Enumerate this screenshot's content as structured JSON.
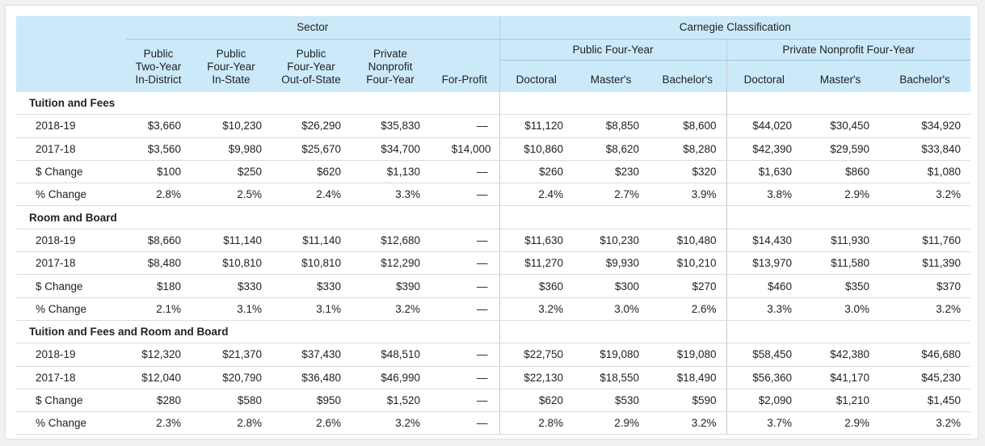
{
  "header": {
    "sector_label": "Sector",
    "carnegie_label": "Carnegie Classification",
    "public_four_year_label": "Public Four-Year",
    "private_nonprofit_label": "Private Nonprofit Four-Year",
    "sector_columns": [
      [
        "Public",
        "Two-Year",
        "In-District"
      ],
      [
        "Public",
        "Four-Year",
        "In-State"
      ],
      [
        "Public",
        "Four-Year",
        "Out-of-State"
      ],
      [
        "Private",
        "Nonprofit",
        "Four-Year"
      ],
      [
        "For-Profit"
      ]
    ],
    "carnegie_columns": [
      "Doctoral",
      "Master's",
      "Bachelor's",
      "Doctoral",
      "Master's",
      "Bachelor's"
    ]
  },
  "sections": [
    {
      "title": "Tuition and Fees",
      "rows": [
        {
          "label": "2018-19",
          "values": [
            "$3,660",
            "$10,230",
            "$26,290",
            "$35,830",
            "—",
            "$11,120",
            "$8,850",
            "$8,600",
            "$44,020",
            "$30,450",
            "$34,920"
          ]
        },
        {
          "label": "2017-18",
          "values": [
            "$3,560",
            "$9,980",
            "$25,670",
            "$34,700",
            "$14,000",
            "$10,860",
            "$8,620",
            "$8,280",
            "$42,390",
            "$29,590",
            "$33,840"
          ]
        },
        {
          "label": "$ Change",
          "values": [
            "$100",
            "$250",
            "$620",
            "$1,130",
            "—",
            "$260",
            "$230",
            "$320",
            "$1,630",
            "$860",
            "$1,080"
          ]
        },
        {
          "label": "% Change",
          "values": [
            "2.8%",
            "2.5%",
            "2.4%",
            "3.3%",
            "—",
            "2.4%",
            "2.7%",
            "3.9%",
            "3.8%",
            "2.9%",
            "3.2%"
          ]
        }
      ]
    },
    {
      "title": "Room and Board",
      "rows": [
        {
          "label": "2018-19",
          "values": [
            "$8,660",
            "$11,140",
            "$11,140",
            "$12,680",
            "—",
            "$11,630",
            "$10,230",
            "$10,480",
            "$14,430",
            "$11,930",
            "$11,760"
          ]
        },
        {
          "label": "2017-18",
          "values": [
            "$8,480",
            "$10,810",
            "$10,810",
            "$12,290",
            "—",
            "$11,270",
            "$9,930",
            "$10,210",
            "$13,970",
            "$11,580",
            "$11,390"
          ]
        },
        {
          "label": "$ Change",
          "values": [
            "$180",
            "$330",
            "$330",
            "$390",
            "—",
            "$360",
            "$300",
            "$270",
            "$460",
            "$350",
            "$370"
          ]
        },
        {
          "label": "% Change",
          "values": [
            "2.1%",
            "3.1%",
            "3.1%",
            "3.2%",
            "—",
            "3.2%",
            "3.0%",
            "2.6%",
            "3.3%",
            "3.0%",
            "3.2%"
          ]
        }
      ]
    },
    {
      "title": "Tuition and Fees and Room and Board",
      "rows": [
        {
          "label": "2018-19",
          "values": [
            "$12,320",
            "$21,370",
            "$37,430",
            "$48,510",
            "—",
            "$22,750",
            "$19,080",
            "$19,080",
            "$58,450",
            "$42,380",
            "$46,680"
          ]
        },
        {
          "label": "2017-18",
          "values": [
            "$12,040",
            "$20,790",
            "$36,480",
            "$46,990",
            "—",
            "$22,130",
            "$18,550",
            "$18,490",
            "$56,360",
            "$41,170",
            "$45,230"
          ]
        },
        {
          "label": "$ Change",
          "values": [
            "$280",
            "$580",
            "$950",
            "$1,520",
            "—",
            "$620",
            "$530",
            "$590",
            "$2,090",
            "$1,210",
            "$1,450"
          ]
        },
        {
          "label": "% Change",
          "values": [
            "2.3%",
            "2.8%",
            "2.6%",
            "3.2%",
            "—",
            "2.8%",
            "2.9%",
            "3.2%",
            "3.7%",
            "2.9%",
            "3.2%"
          ]
        }
      ]
    }
  ]
}
